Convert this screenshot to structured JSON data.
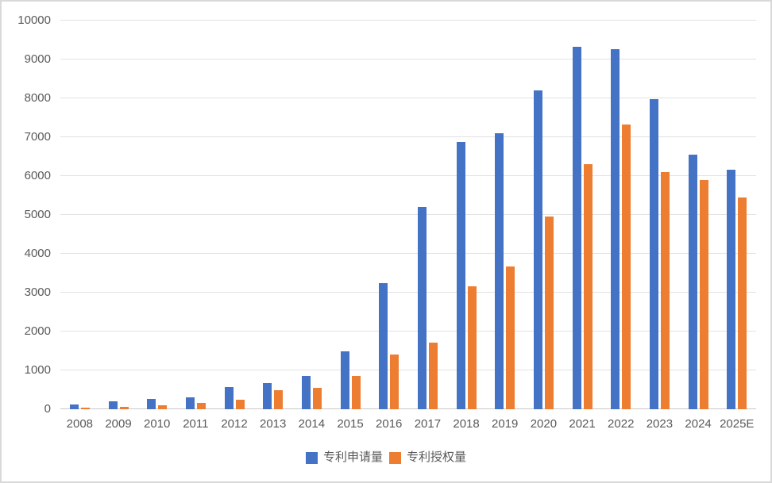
{
  "chart_data": {
    "type": "bar",
    "title": "",
    "categories": [
      "2008",
      "2009",
      "2010",
      "2011",
      "2012",
      "2013",
      "2014",
      "2015",
      "2016",
      "2017",
      "2018",
      "2019",
      "2020",
      "2021",
      "2022",
      "2023",
      "2024",
      "2025E"
    ],
    "series": [
      {
        "name": "专利申请量",
        "color": "#4472C4",
        "values": [
          120,
          200,
          270,
          310,
          580,
          680,
          860,
          1500,
          3250,
          5200,
          6870,
          7110,
          8200,
          9330,
          9270,
          7980,
          6550,
          6170
        ]
      },
      {
        "name": "专利授权量",
        "color": "#ED7D31",
        "values": [
          40,
          70,
          100,
          170,
          250,
          480,
          560,
          860,
          1400,
          1720,
          3160,
          3680,
          4950,
          6300,
          7320,
          6110,
          5900,
          5450
        ]
      }
    ],
    "xlabel": "",
    "ylabel": "",
    "ylim": [
      0,
      10000
    ],
    "ytick_step": 1000,
    "grid": true,
    "legend_position": "bottom",
    "colors": {
      "grid_line": "#e2e2e2",
      "zero_line": "#c9c9c9",
      "axis_text": "#595959",
      "frame_border": "#d9d9d9",
      "background": "#ffffff"
    }
  }
}
